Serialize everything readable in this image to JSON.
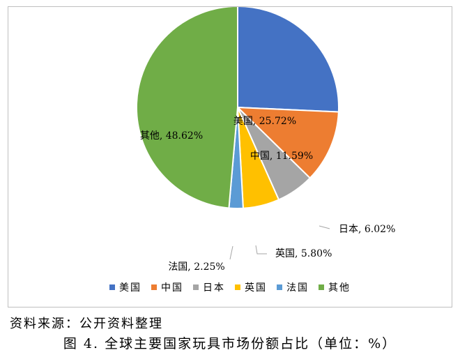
{
  "chart_data": {
    "type": "pie",
    "slices": [
      {
        "name": "美国",
        "value": 25.72,
        "label": "美国, 25.72%",
        "color": "#4472c4"
      },
      {
        "name": "中国",
        "value": 11.59,
        "label": "中国, 11.59%",
        "color": "#ed7d31"
      },
      {
        "name": "日本",
        "value": 6.02,
        "label": "日本, 6.02%",
        "color": "#a5a5a5"
      },
      {
        "name": "英国",
        "value": 5.8,
        "label": "英国, 5.80%",
        "color": "#ffc000"
      },
      {
        "name": "法国",
        "value": 2.25,
        "label": "法国, 2.25%",
        "color": "#5b9bd5"
      },
      {
        "name": "其他",
        "value": 48.62,
        "label": "其他, 48.62%",
        "color": "#70ad47"
      }
    ],
    "legend_position": "bottom"
  },
  "source": "资料来源：公开资料整理",
  "caption": "图 4. 全球主要国家玩具市场份额占比（单位：%）"
}
